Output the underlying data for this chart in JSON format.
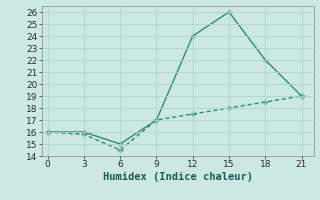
{
  "line1_x": [
    0,
    3,
    6,
    9,
    12,
    15,
    18,
    21
  ],
  "line1_y": [
    16,
    16,
    15,
    17,
    24,
    26,
    22,
    19
  ],
  "line2_x": [
    0,
    3,
    6,
    9,
    12,
    15,
    18,
    21
  ],
  "line2_y": [
    16,
    15.8,
    14.5,
    17,
    17.5,
    18,
    18.5,
    19
  ],
  "color": "#2e8b74",
  "bg_color": "#cce8e4",
  "grid_color": "#aed4cf",
  "xlabel": "Humidex (Indice chaleur)",
  "xlim": [
    -0.5,
    22
  ],
  "ylim": [
    14,
    26.5
  ],
  "xticks": [
    0,
    3,
    6,
    9,
    12,
    15,
    18,
    21
  ],
  "yticks": [
    14,
    15,
    16,
    17,
    18,
    19,
    20,
    21,
    22,
    23,
    24,
    25,
    26
  ],
  "font_size": 6.5,
  "label_font_size": 7.5
}
